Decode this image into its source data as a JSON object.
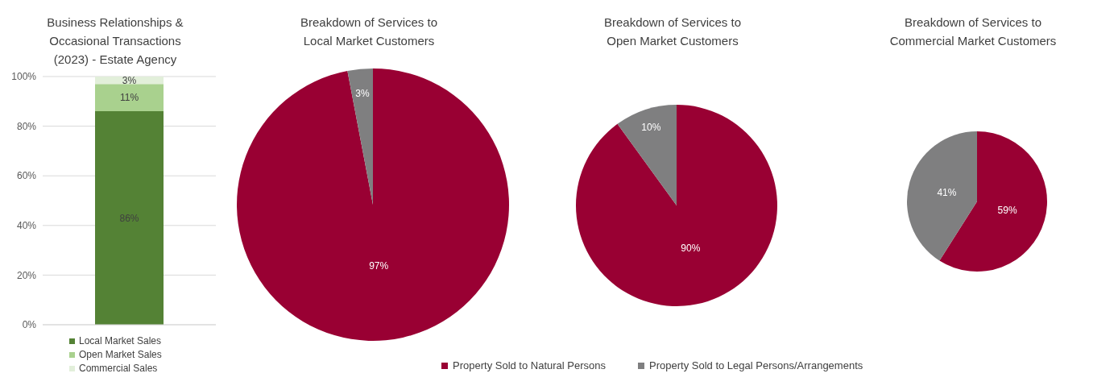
{
  "chart_data": [
    {
      "type": "bar",
      "title": "Business Relationships & Occasional Transactions (2023) - Estate Agency",
      "stacked": true,
      "categories": [
        null
      ],
      "series": [
        {
          "name": "Local Market Sales",
          "color": "#548235",
          "values": [
            86
          ],
          "value_labels": [
            "86%"
          ]
        },
        {
          "name": "Open Market Sales",
          "color": "#a9d18e",
          "values": [
            11
          ],
          "value_labels": [
            "11%"
          ]
        },
        {
          "name": "Commercial Sales",
          "color": "#e2efda",
          "values": [
            3
          ],
          "value_labels": [
            "3%"
          ]
        }
      ],
      "ylim": [
        0,
        100
      ],
      "yticks": [
        {
          "value": 0,
          "label": "0%"
        },
        {
          "value": 20,
          "label": "20%"
        },
        {
          "value": 40,
          "label": "40%"
        },
        {
          "value": 60,
          "label": "60%"
        },
        {
          "value": 80,
          "label": "80%"
        },
        {
          "value": 100,
          "label": "100%"
        }
      ],
      "grid": "y",
      "legend": "bottom"
    },
    {
      "type": "pie",
      "title": "Breakdown of Services to Local Market Customers",
      "categories": [
        "Property Sold to Natural Persons",
        "Property Sold to Legal Persons/Arrangements"
      ],
      "values": [
        97,
        3
      ],
      "colors": [
        "#990033",
        "#7f7f80"
      ],
      "value_labels": [
        "97%",
        "3%"
      ],
      "legend": "bottom"
    },
    {
      "type": "pie",
      "title": "Breakdown of Services to Open Market Customers",
      "categories": [
        null,
        null
      ],
      "values": [
        90,
        10
      ],
      "colors": [
        "#990033",
        "#7f7f80"
      ],
      "value_labels": [
        "90%",
        "10%"
      ]
    },
    {
      "type": "pie",
      "title": "Breakdown of Services to Commercial Market Customers",
      "categories": [
        null,
        null
      ],
      "values": [
        59,
        41
      ],
      "colors": [
        "#990033",
        "#7f7f80"
      ],
      "value_labels": [
        "59%",
        "41%"
      ]
    }
  ]
}
